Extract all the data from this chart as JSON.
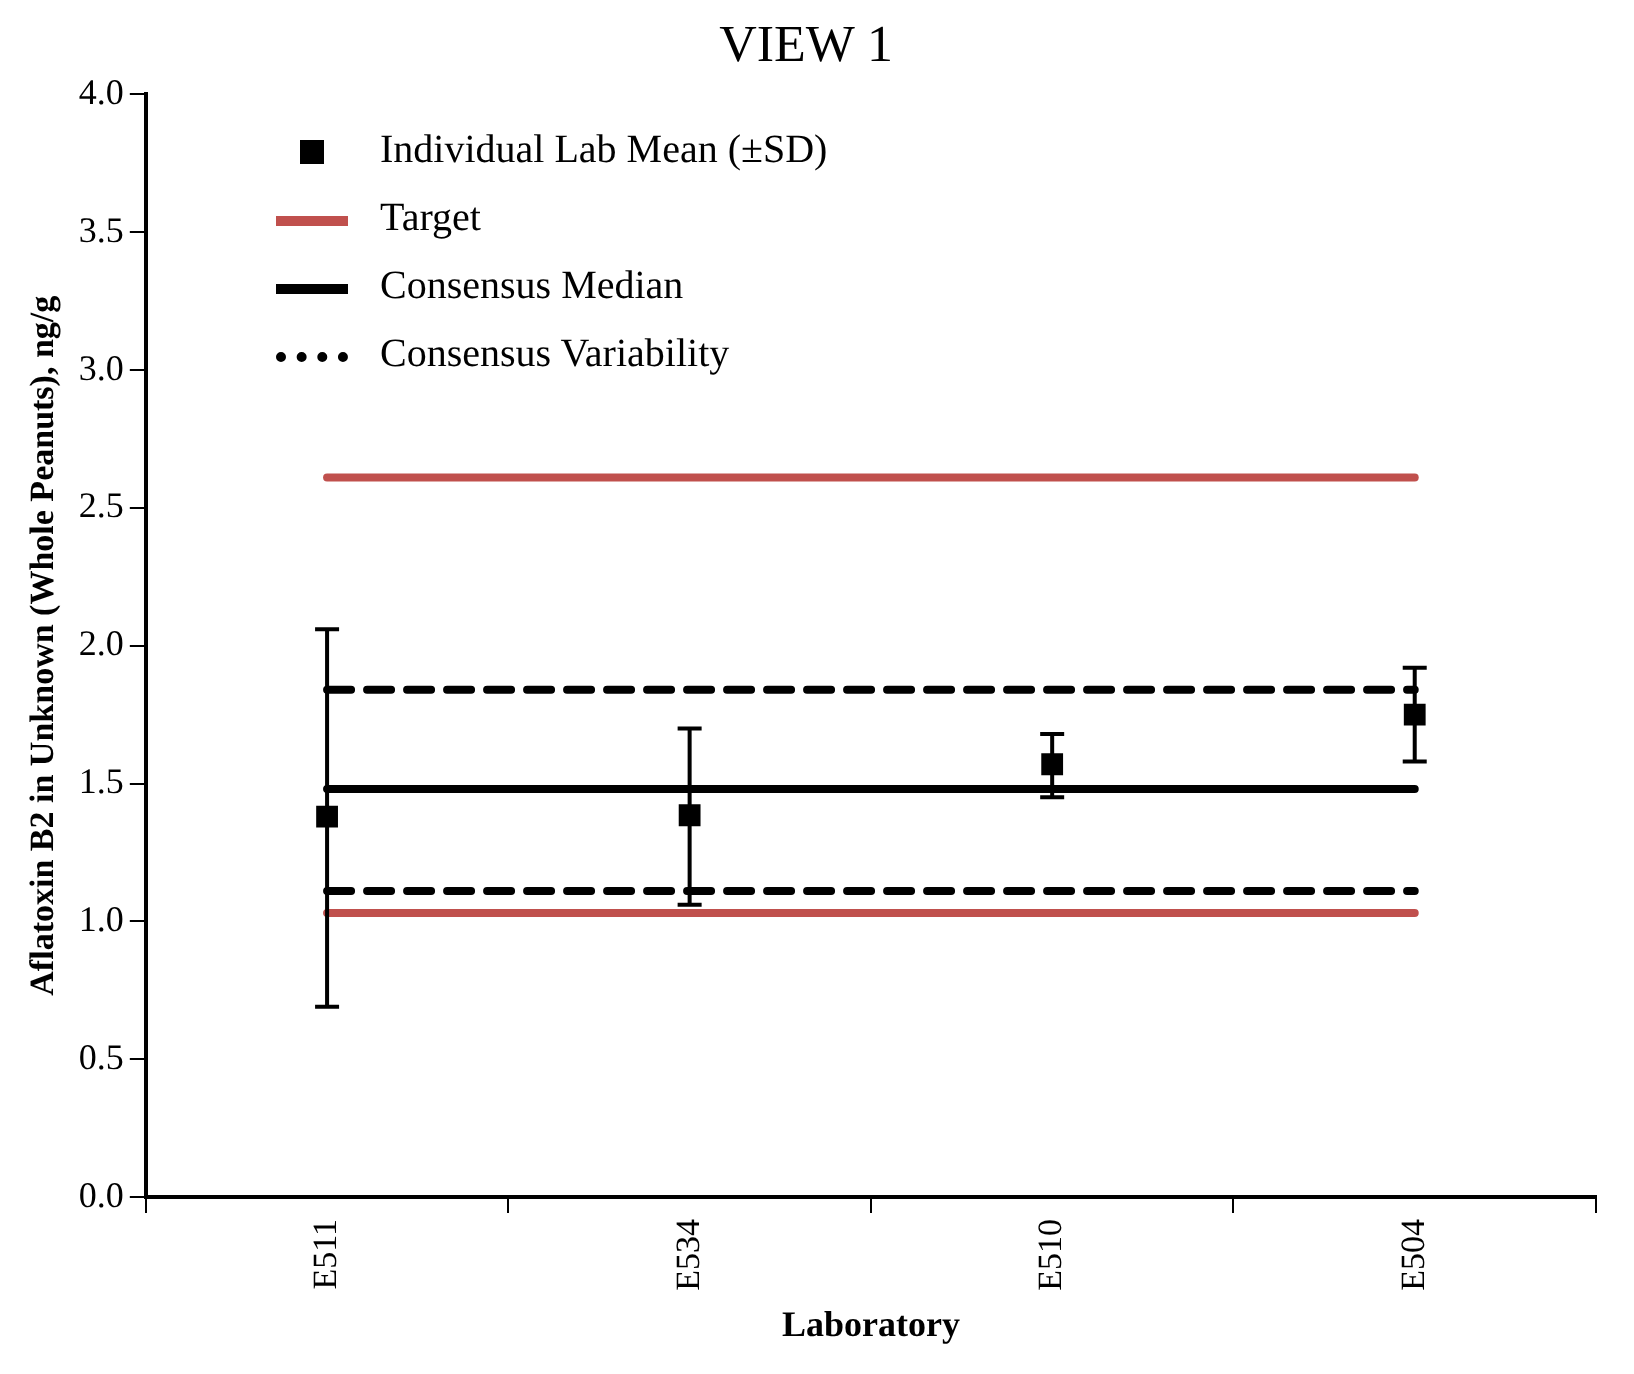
{
  "chart_data": {
    "type": "scatter",
    "title": "VIEW 1",
    "xlabel": "Laboratory",
    "ylabel": "Aflatoxin B2 in Unknown (Whole Peanuts), ng/g",
    "categories": [
      "E511",
      "E534",
      "E510",
      "E504"
    ],
    "ylim": [
      0,
      4
    ],
    "yticks": [
      {
        "value": 0,
        "label": "0.0"
      },
      {
        "value": 0.5,
        "label": "0.5"
      },
      {
        "value": 1,
        "label": "1.0"
      },
      {
        "value": 1.5,
        "label": "1.5"
      },
      {
        "value": 2,
        "label": "2.0"
      },
      {
        "value": 2.5,
        "label": "2.5"
      },
      {
        "value": 3,
        "label": "3.0"
      },
      {
        "value": 3.5,
        "label": "3.5"
      },
      {
        "value": 4,
        "label": "4.0"
      }
    ],
    "grid": false,
    "legend": "top left",
    "series": [
      {
        "name": "Individual Lab Mean (±SD)",
        "marker": "square",
        "color": "#000000",
        "values": [
          1.38,
          1.385,
          1.57,
          1.75
        ],
        "errors": [
          [
            0.69,
            2.06
          ],
          [
            1.06,
            1.7
          ],
          [
            1.45,
            1.68
          ],
          [
            1.58,
            1.92
          ]
        ]
      },
      {
        "name": "Target",
        "type": "line",
        "line_style": "solid",
        "color": "#c0504d",
        "values": [
          2.61,
          2.61,
          2.61,
          2.61
        ]
      },
      {
        "type": "line",
        "line_style": "solid",
        "color": "#c0504d",
        "values": [
          1.03,
          1.03,
          1.03,
          1.03
        ]
      },
      {
        "name": "Consensus Median",
        "type": "line",
        "line_style": "solid",
        "color": "#000000",
        "values": [
          1.48,
          1.48,
          1.48,
          1.48
        ]
      },
      {
        "name": "Consensus Variability",
        "type": "line",
        "line_style": "dashed",
        "color": "#000000",
        "values": [
          1.84,
          1.84,
          1.84,
          1.84
        ]
      },
      {
        "type": "line",
        "line_style": "dashed",
        "color": "#000000",
        "values": [
          1.11,
          1.11,
          1.11,
          1.11
        ]
      }
    ]
  }
}
